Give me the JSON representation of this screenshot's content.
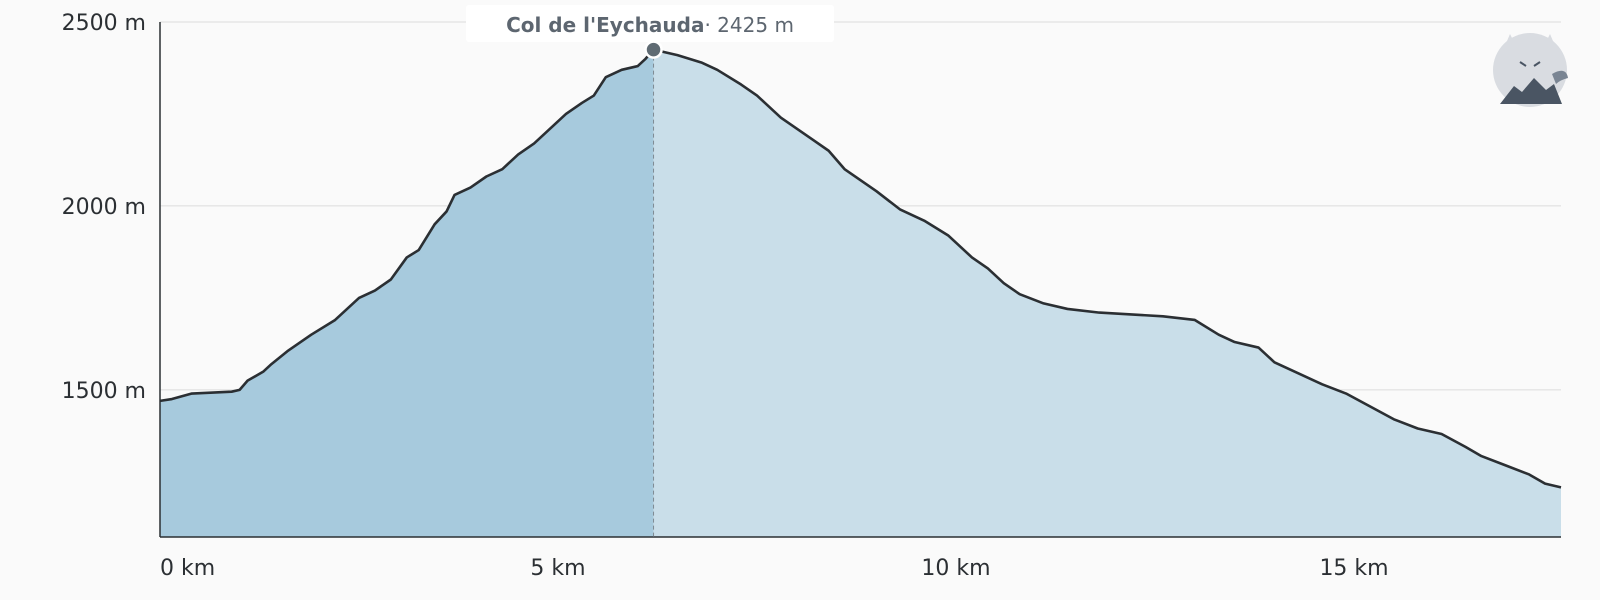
{
  "colors": {
    "fill_passed": "#a7cadd",
    "fill_remaining": "#c9dee9",
    "line": "#2b2f33",
    "marker": "#5f6b73",
    "grid": "#dcdcdc",
    "background": "#fafafa"
  },
  "logo": {
    "icon": "fox-mountain-logo-icon"
  },
  "chart_data": {
    "type": "area",
    "xlabel": "",
    "ylabel": "",
    "xlim": [
      0,
      17.6
    ],
    "ylim": [
      1100,
      2500
    ],
    "yticks": [
      1500,
      2000,
      2500
    ],
    "xticks": [
      0,
      5,
      10,
      15
    ],
    "ytick_labels": [
      "1500 m",
      "2000 m",
      "2500 m"
    ],
    "xtick_labels": [
      "0 km",
      "5 km",
      "10 km",
      "15 km"
    ],
    "grid": true,
    "marker": {
      "x": 6.2,
      "y": 2425,
      "name": "Col de l'Eychauda",
      "value_label": "· 2425 m"
    },
    "x": [
      0,
      0.15,
      0.4,
      0.9,
      1.0,
      1.1,
      1.3,
      1.4,
      1.6,
      1.9,
      2.2,
      2.35,
      2.5,
      2.7,
      2.9,
      3.1,
      3.25,
      3.45,
      3.6,
      3.7,
      3.9,
      4.1,
      4.3,
      4.5,
      4.7,
      4.9,
      5.1,
      5.3,
      5.45,
      5.6,
      5.8,
      6.0,
      6.1,
      6.2,
      6.5,
      6.8,
      7.0,
      7.3,
      7.5,
      7.6,
      7.8,
      8.0,
      8.2,
      8.4,
      8.6,
      8.8,
      9.0,
      9.3,
      9.6,
      9.9,
      10.0,
      10.2,
      10.4,
      10.6,
      10.8,
      11.1,
      11.4,
      11.8,
      12.2,
      12.6,
      13.0,
      13.3,
      13.5,
      13.8,
      14.0,
      14.3,
      14.6,
      14.9,
      15.2,
      15.5,
      15.8,
      16.1,
      16.4,
      16.6,
      16.9,
      17.2,
      17.4,
      17.6
    ],
    "y": [
      1470,
      1475,
      1490,
      1495,
      1500,
      1525,
      1550,
      1570,
      1605,
      1650,
      1690,
      1720,
      1750,
      1770,
      1800,
      1860,
      1880,
      1950,
      1985,
      2030,
      2050,
      2080,
      2100,
      2140,
      2170,
      2210,
      2250,
      2280,
      2300,
      2350,
      2370,
      2380,
      2400,
      2425,
      2410,
      2390,
      2370,
      2330,
      2300,
      2280,
      2240,
      2210,
      2180,
      2150,
      2100,
      2070,
      2040,
      1990,
      1960,
      1920,
      1900,
      1860,
      1830,
      1790,
      1760,
      1735,
      1720,
      1710,
      1705,
      1700,
      1690,
      1650,
      1630,
      1615,
      1575,
      1545,
      1515,
      1490,
      1455,
      1420,
      1395,
      1380,
      1345,
      1320,
      1295,
      1270,
      1245,
      1235
    ]
  }
}
